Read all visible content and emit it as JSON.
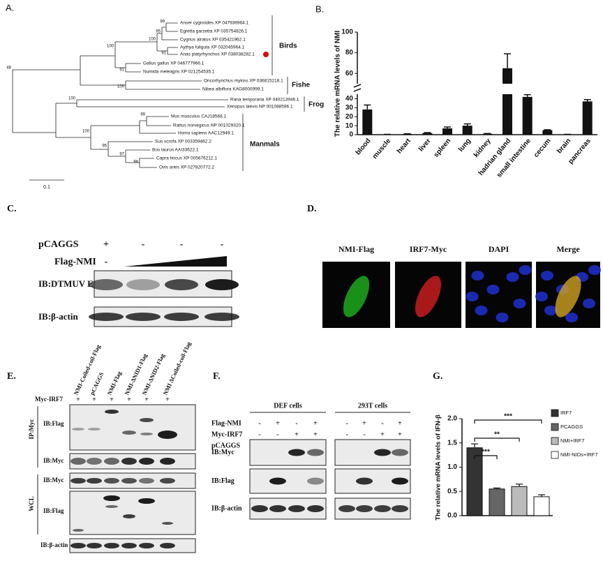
{
  "panel_a": {
    "label": "A.",
    "leaves": [
      "Anser cygnoides XP 047936964.1",
      "Egretta garzetta XP 035754826.1",
      "Cygnus atratus XP 035421962.1",
      "Aythya fuligula XP 032045964.1",
      "Anas platyrhynchos XP 038038282.1",
      "Gallus gallus XP 046777966.1",
      "Numida meleagris XP 021254535.1",
      "Oncorhynchus mykiss XP 036815218.1",
      "Nibea albiflora KAG8000999.1",
      "Rana temporaria XP 040213946.1",
      "Xenopus laevis NP 001088596.1",
      "Mus musculus CAJ18568.1",
      "Rattus norvegicus NP 001029320.1",
      "Homo sapiens AAC12949.1",
      "Sus scrofa XP 003359462.2",
      "Bos taurus AAI33622.1",
      "Capra hircus XP 005676212.1",
      "Ovis aries XP 027820772.2"
    ],
    "bootstrap": [
      99,
      95,
      100,
      91,
      100,
      91,
      48,
      100,
      100,
      100,
      95,
      97,
      98,
      99
    ],
    "groups": [
      "Birds",
      "Fishe",
      "Frog",
      "Manmals"
    ],
    "scale": "0.1"
  },
  "chart_data": [
    {
      "type": "bar",
      "panel": "B.",
      "y_label": "The relative mRNA levels of NMI",
      "categories": [
        "blood",
        "muscle",
        "heart",
        "liver",
        "spleen",
        "lung",
        "kidney",
        "hadrian gland",
        "small intestine",
        "cecum",
        "brain",
        "pancreas"
      ],
      "values": [
        28,
        0.3,
        0.8,
        1.8,
        7,
        10,
        1,
        65,
        42,
        5,
        0.3,
        37
      ],
      "errors": [
        5,
        0.1,
        0.2,
        0.5,
        1.5,
        2,
        0.3,
        14,
        2.5,
        0.5,
        0.1,
        2
      ],
      "color": "#111111",
      "ylim": [
        0,
        100
      ],
      "y_break": [
        45,
        50
      ],
      "yticks": [
        0,
        10,
        20,
        30,
        40,
        60,
        80,
        100
      ]
    },
    {
      "type": "bar",
      "panel": "G.",
      "y_label": "The relative mRNA levels of IFN-β",
      "series": [
        {
          "name": "IRF7",
          "color": "#333333",
          "values": [
            1.4
          ],
          "errors": [
            0.08
          ]
        },
        {
          "name": "PCAGGS",
          "color": "#666666",
          "values": [
            0.55
          ],
          "errors": [
            0.02
          ]
        },
        {
          "name": "NMI+IRF7",
          "color": "#bbbbbb",
          "values": [
            0.6
          ],
          "errors": [
            0.05
          ]
        },
        {
          "name": "NMI-NIDs+IRF7",
          "color": "#ffffff",
          "values": [
            0.39
          ],
          "errors": [
            0.04
          ]
        }
      ],
      "ylim": [
        0,
        2
      ],
      "yticks": [
        {
          "value": 0,
          "label": "0.0"
        },
        0.5,
        {
          "value": 1,
          "label": "1.0"
        },
        1.5,
        {
          "value": 2,
          "label": "2.0"
        }
      ],
      "annotations": [
        "***",
        "**",
        "***"
      ],
      "legend": "right"
    }
  ],
  "panel_c": {
    "label": "C.",
    "treatments": [
      {
        "name": "pCAGGS",
        "signs": [
          "+",
          "-",
          "-",
          "-"
        ]
      },
      {
        "name": "Flag-NMI",
        "signs": [
          "-"
        ]
      }
    ],
    "blots": [
      "IB:DTMUV E",
      "IB:β-actin"
    ]
  },
  "panel_d": {
    "label": "D.",
    "channels": [
      "NMI-Flag",
      "IRF7-Myc",
      "DAPI",
      "Merge"
    ]
  },
  "panel_e": {
    "label": "E.",
    "lanes": [
      "NMI-Coiled-coil-Flag",
      "pCAGGS",
      "NMI-Flag",
      "NMI-ΔNID1-Flag",
      "NMI-ΔNID2-Flag",
      "NMI ΔCoiled-coil-Flag"
    ],
    "treatment": {
      "name": "Myc-IRF7",
      "signs": [
        "+",
        "+",
        "+",
        "+",
        "+",
        "+"
      ]
    },
    "ip": {
      "name": "IP:Myc",
      "blots": [
        "IB:Flag",
        "IB:Myc"
      ]
    },
    "wcl": {
      "name": "WCL",
      "blots": [
        "IB:Myc",
        "IB:Flag"
      ]
    },
    "loading": "IB:β-actin"
  },
  "panel_f": {
    "label": "F.",
    "cells": [
      "DEF cells",
      "293T cells"
    ],
    "treatments": [
      {
        "name": "Flag-NMI",
        "signs": [
          [
            "-",
            "+",
            "-",
            "+"
          ],
          [
            "-",
            "+",
            "-",
            "+"
          ]
        ]
      },
      {
        "name": "Myc-IRF7",
        "signs": [
          [
            "-",
            "-",
            "+",
            "+"
          ],
          [
            "-",
            "-",
            "+",
            "+"
          ]
        ]
      },
      {
        "name": "pCAGGS",
        "signs": [
          [
            "+",
            "-",
            "-",
            "-"
          ],
          [
            "+",
            "-",
            "-",
            "-"
          ]
        ]
      }
    ],
    "blots": [
      "IB:Myc",
      "IB:Flag",
      "IB:β-actin"
    ]
  }
}
